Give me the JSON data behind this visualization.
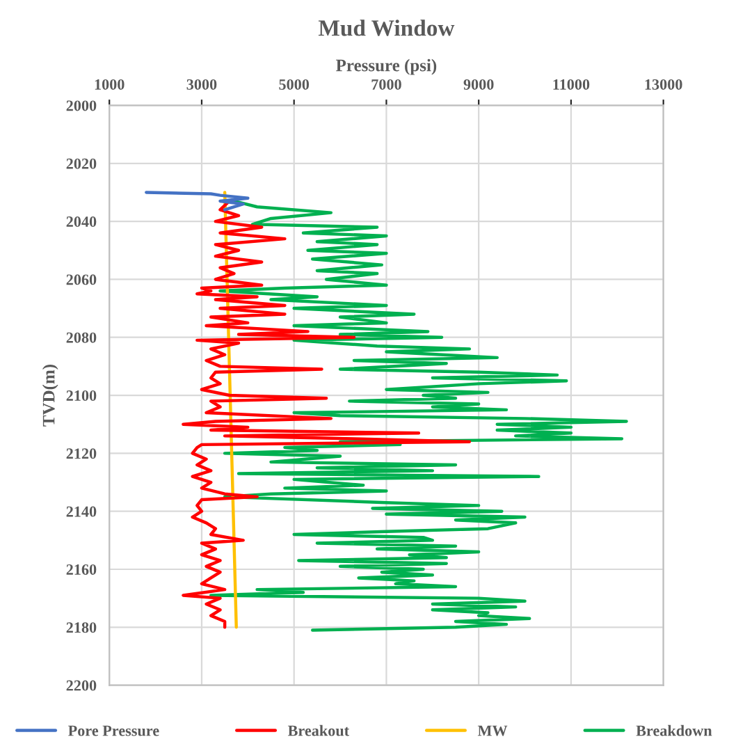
{
  "chart_data": {
    "type": "line",
    "title": "Mud Window",
    "xlabel": "Pressure (psi)",
    "ylabel": "TVD(m)",
    "xlim": [
      1000,
      13000
    ],
    "xticks": [
      1000,
      3000,
      5000,
      7000,
      9000,
      11000,
      13000
    ],
    "ylim": [
      2200,
      2000
    ],
    "yticks": [
      2000,
      2020,
      2040,
      2060,
      2080,
      2100,
      2120,
      2140,
      2160,
      2180,
      2200
    ],
    "grid": true,
    "legend": "bottom",
    "line_style": "solid",
    "marker": "none",
    "series": [
      {
        "name": "Pore Pressure",
        "color": "#4472c4",
        "x": [
          1800,
          3200,
          3400,
          4000,
          3400,
          3900,
          3500
        ],
        "values": [
          2030,
          2030.5,
          2031,
          2032,
          2033,
          2034,
          2036
        ]
      },
      {
        "name": "Breakout",
        "color": "#ff0000",
        "x": [
          3600,
          3400,
          3800,
          3300,
          4300,
          3400,
          4800,
          3300,
          3800,
          3300,
          4300,
          3400,
          3700,
          3300,
          4300,
          3000,
          3200,
          2900,
          4200,
          3300,
          4800,
          3400,
          4800,
          3200,
          4000,
          3100,
          5300,
          3800,
          6300,
          2900,
          3800,
          3200,
          3500,
          3100,
          3400,
          5600,
          3300,
          3200,
          3400,
          3000,
          3600,
          5700,
          3200,
          3400,
          3100,
          5800,
          3300,
          2600,
          4000,
          3200,
          7700,
          3500,
          6300,
          8800,
          3000,
          2900,
          2800,
          3100,
          2900,
          3200,
          2800,
          3200,
          3000,
          3500,
          4200,
          3000,
          2900,
          3000,
          2800,
          3100,
          3300,
          3200,
          3900,
          3000,
          3300,
          3000,
          3400,
          3100,
          3400,
          3200,
          3000,
          3500,
          2600,
          3400,
          3100,
          3400,
          3200,
          3500,
          3500
        ],
        "values": [
          2033,
          2036,
          2038,
          2040,
          2042,
          2044,
          2046,
          2048,
          2050,
          2052,
          2054,
          2056,
          2058,
          2060,
          2062,
          2063,
          2064,
          2065,
          2066,
          2067,
          2069,
          2070,
          2072,
          2073,
          2075,
          2076,
          2078,
          2079,
          2080,
          2081,
          2082,
          2084,
          2086,
          2088,
          2090,
          2091,
          2092,
          2094,
          2096,
          2098,
          2100,
          2101,
          2102,
          2104,
          2106,
          2108,
          2109,
          2110,
          2111,
          2112,
          2113,
          2114,
          2115,
          2116,
          2117,
          2118,
          2120,
          2122,
          2124,
          2126,
          2128,
          2130,
          2132,
          2134,
          2135,
          2136,
          2138,
          2140,
          2142,
          2144,
          2146,
          2148,
          2150,
          2151,
          2153,
          2155,
          2157,
          2159,
          2161,
          2163,
          2165,
          2167,
          2169,
          2170,
          2172,
          2174,
          2176,
          2178,
          2180
        ]
      },
      {
        "name": "MW",
        "color": "#ffc000",
        "x": [
          3500,
          3750
        ],
        "values": [
          2030,
          2180
        ]
      },
      {
        "name": "Breakdown",
        "color": "#00b050",
        "x": [
          3700,
          4200,
          5800,
          4500,
          4100,
          6800,
          5200,
          7000,
          5500,
          6800,
          5300,
          7000,
          5400,
          6900,
          5500,
          6800,
          5700,
          7000,
          4800,
          3400,
          5500,
          4500,
          7000,
          5000,
          7600,
          6000,
          7000,
          5000,
          7900,
          6000,
          8200,
          5000,
          6800,
          8800,
          7000,
          9400,
          6300,
          8300,
          6000,
          9000,
          10700,
          8000,
          10900,
          9000,
          7000,
          9200,
          7800,
          8500,
          6200,
          9000,
          8000,
          9600,
          5000,
          6000,
          10000,
          12200,
          9400,
          11000,
          9400,
          11000,
          9800,
          12100,
          6000,
          7300,
          4800,
          5500,
          3500,
          6000,
          4500,
          8500,
          5500,
          8000,
          3800,
          10300,
          5000,
          6500,
          4800,
          7000,
          4500,
          3500,
          7000,
          9000,
          6700,
          9500,
          7000,
          10000,
          8500,
          9800,
          9200,
          7000,
          5000,
          7800,
          8000,
          5500,
          8500,
          6800,
          9000,
          7500,
          8300,
          5100,
          8300,
          6000,
          7800,
          6900,
          8000,
          6400,
          7600,
          7200,
          8500,
          4200,
          5200,
          3200,
          9000,
          10000,
          8000,
          9800,
          8000,
          9200,
          9000,
          10100,
          8500,
          9600,
          8500,
          5400
        ],
        "values": [
          2033,
          2035,
          2037,
          2039,
          2041,
          2042,
          2044,
          2045,
          2047,
          2048,
          2050,
          2051,
          2053,
          2055,
          2057,
          2058,
          2060,
          2062,
          2063,
          2064,
          2066,
          2067,
          2069,
          2070,
          2072,
          2073,
          2075,
          2076,
          2078,
          2079,
          2080,
          2081,
          2083,
          2084,
          2085,
          2087,
          2088,
          2089,
          2091,
          2092,
          2093,
          2094,
          2095,
          2096,
          2098,
          2099,
          2100,
          2101,
          2102,
          2103,
          2104,
          2105,
          2106,
          2107,
          2108,
          2109,
          2110,
          2111,
          2112,
          2113,
          2114,
          2115,
          2116,
          2117,
          2118,
          2119,
          2120,
          2121,
          2123,
          2124,
          2125,
          2126,
          2127,
          2128,
          2129,
          2131,
          2132,
          2133,
          2134,
          2135,
          2137,
          2138,
          2139,
          2140,
          2141,
          2142,
          2143,
          2144,
          2146,
          2147,
          2148,
          2149,
          2150,
          2151,
          2152,
          2153,
          2154,
          2155,
          2156,
          2157,
          2158,
          2159,
          2160,
          2161,
          2162,
          2163,
          2164,
          2165,
          2166,
          2167,
          2168,
          2169,
          2170,
          2171,
          2172,
          2173,
          2174,
          2175,
          2176,
          2177,
          2178,
          2179,
          2180,
          2181
        ]
      }
    ]
  }
}
